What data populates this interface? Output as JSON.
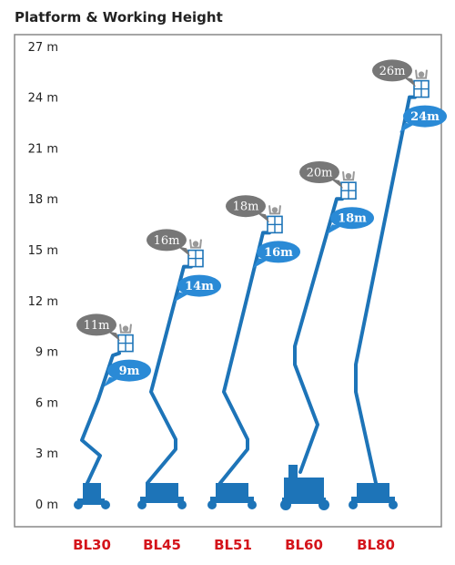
{
  "chart_data": {
    "type": "other",
    "title": "Platform & Working Height",
    "y_unit": "m",
    "ylim": [
      0,
      28
    ],
    "yticks": [
      0,
      3,
      6,
      9,
      12,
      15,
      18,
      21,
      24,
      27
    ],
    "ytick_labels": [
      "0 m",
      "3 m",
      "6 m",
      "9 m",
      "12 m",
      "15 m",
      "18 m",
      "21 m",
      "24 m",
      "27 m"
    ],
    "categories": [
      "BL30",
      "BL45",
      "BL51",
      "BL60",
      "BL80"
    ],
    "series": [
      {
        "name": "",
        "values": [
          9,
          14,
          16,
          18,
          24
        ]
      },
      {
        "name": "",
        "values": [
          11,
          16,
          18,
          20,
          26
        ]
      }
    ],
    "platform_labels": [
      "9m",
      "14m",
      "16m",
      "18m",
      "24m"
    ],
    "working_labels": [
      "11m",
      "16m",
      "18m",
      "20m",
      "26m"
    ],
    "colors": {
      "boom": "#1d74b8",
      "platform_bubble": "#2a8ad6",
      "working_bubble": "#777777",
      "category": "#d4141b",
      "frame": "#888888"
    }
  }
}
